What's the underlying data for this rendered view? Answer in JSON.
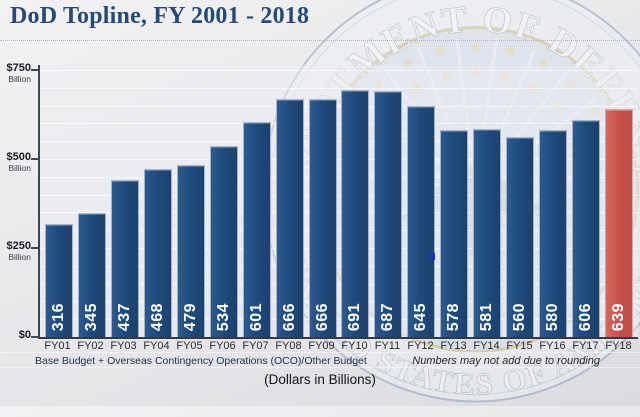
{
  "header": {
    "title": "DoD Topline, FY 2001 - 2018"
  },
  "chart_data": {
    "type": "bar",
    "title": "DoD Topline, FY 2001 - 2018",
    "categories": [
      "FY01",
      "FY02",
      "FY03",
      "FY04",
      "FY05",
      "FY06",
      "FY07",
      "FY08",
      "FY09",
      "FY10",
      "FY11",
      "FY12",
      "FY13",
      "FY14",
      "FY15",
      "FY16",
      "FY17",
      "FY18"
    ],
    "values": [
      316,
      345,
      437,
      468,
      479,
      534,
      601,
      666,
      666,
      691,
      687,
      645,
      578,
      581,
      560,
      580,
      606,
      639
    ],
    "ylabel": "Dollars in Billions",
    "ylim": [
      0,
      750
    ],
    "yticks": [
      {
        "value": 750,
        "label": "$750",
        "sublabel": "Billion"
      },
      {
        "value": 500,
        "label": "$500",
        "sublabel": "Billion"
      },
      {
        "value": 250,
        "label": "$250",
        "sublabel": "Billion"
      },
      {
        "value": 0,
        "label": "$0",
        "sublabel": ""
      }
    ],
    "minor_grid_step": 50,
    "grid": true,
    "legend_position": "none",
    "bar_color": "#1f4b7c",
    "highlight_bar_color": "#c65149",
    "highlight_category": "FY18",
    "value_label_color": "#ffffff"
  },
  "footnotes": {
    "left": "Base Budget + Overseas Contingency Operations (OCO)/Other Budget",
    "right": "Numbers may not add due to rounding",
    "center": "(Dollars in Billions)"
  },
  "watermark": {
    "name": "department-of-defense-seal",
    "ring_text_top": "EPARTMENT OF DEFENSE",
    "ring_text_bottom": "UNITED STATES OF AMERICA"
  },
  "colors": {
    "title": "#254a75",
    "background": "#e9e9ec",
    "axis": "#3f4654",
    "bar": "#1f4b7c",
    "highlight": "#c65149"
  }
}
